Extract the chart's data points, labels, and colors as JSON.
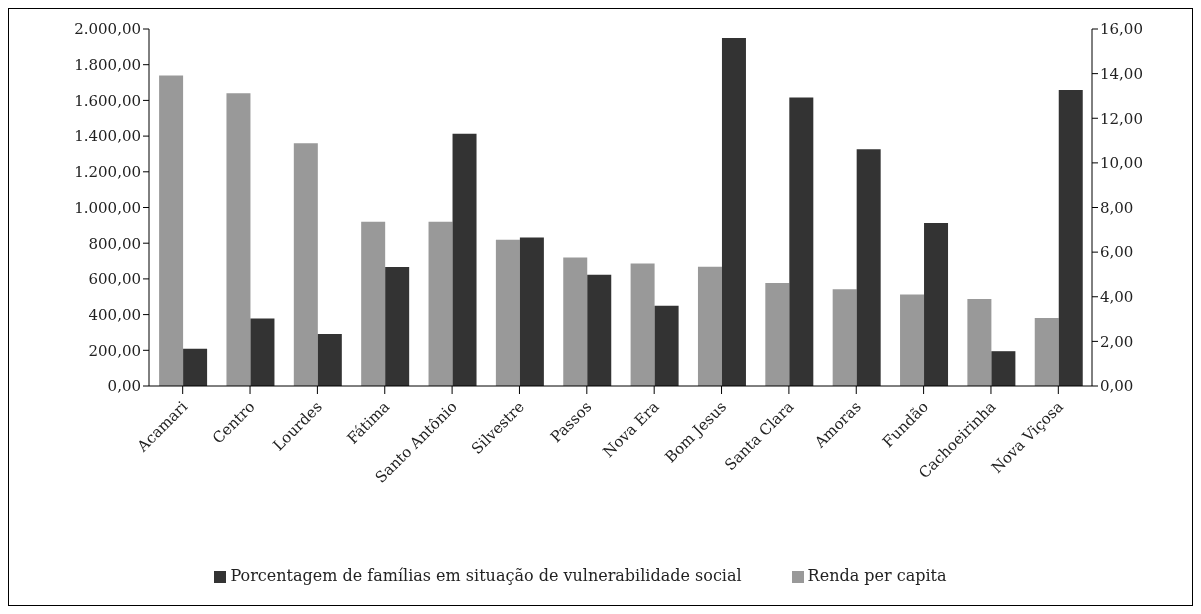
{
  "chart_data": {
    "type": "bar",
    "categories": [
      "Acamari",
      "Centro",
      "Lourdes",
      "Fátima",
      "Santo Antônio",
      "Silvestre",
      "Passos",
      "Nova Era",
      "Bom Jesus",
      "Santa Clara",
      "Amoras",
      "Fundão",
      "Cachoeirinha",
      "Nova Viçosa"
    ],
    "series": [
      {
        "name": "Renda per capita",
        "color": "#999999",
        "values": [
          1740,
          1640,
          1360,
          920,
          920,
          820,
          720,
          686,
          668,
          577,
          542,
          512,
          488,
          381
        ]
      },
      {
        "name": "Porcentagem de famílias em situação de vulnerabilidade social",
        "color": "#333333",
        "axis": "y2",
        "values": [
          1.67,
          3.02,
          2.33,
          5.33,
          11.3,
          6.65,
          4.99,
          3.6,
          15.6,
          12.93,
          10.61,
          7.31,
          1.56,
          13.27
        ]
      }
    ],
    "ylim": [
      0,
      2000
    ],
    "yticks": [
      {
        "value": 0,
        "label": "0,00"
      },
      {
        "value": 200,
        "label": "200,00"
      },
      {
        "value": 400,
        "label": "400,00"
      },
      {
        "value": 600,
        "label": "600,00"
      },
      {
        "value": 800,
        "label": "800,00"
      },
      {
        "value": 1000,
        "label": "1.000,00"
      },
      {
        "value": 1200,
        "label": "1.200,00"
      },
      {
        "value": 1400,
        "label": "1.400,00"
      },
      {
        "value": 1600,
        "label": "1.600,00"
      },
      {
        "value": 1800,
        "label": "1.800,00"
      },
      {
        "value": 2000,
        "label": "2.000,00"
      }
    ],
    "y2lim": [
      0,
      16
    ],
    "y2ticks": [
      {
        "value": 0,
        "label": "0,00"
      },
      {
        "value": 2,
        "label": "2,00"
      },
      {
        "value": 4,
        "label": "4,00"
      },
      {
        "value": 6,
        "label": "6,00"
      },
      {
        "value": 8,
        "label": "8,00"
      },
      {
        "value": 10,
        "label": "10,00"
      },
      {
        "value": 12,
        "label": "12,00"
      },
      {
        "value": 14,
        "label": "14,00"
      },
      {
        "value": 16,
        "label": "16,00"
      }
    ],
    "grid": false,
    "legend": "bottom"
  }
}
